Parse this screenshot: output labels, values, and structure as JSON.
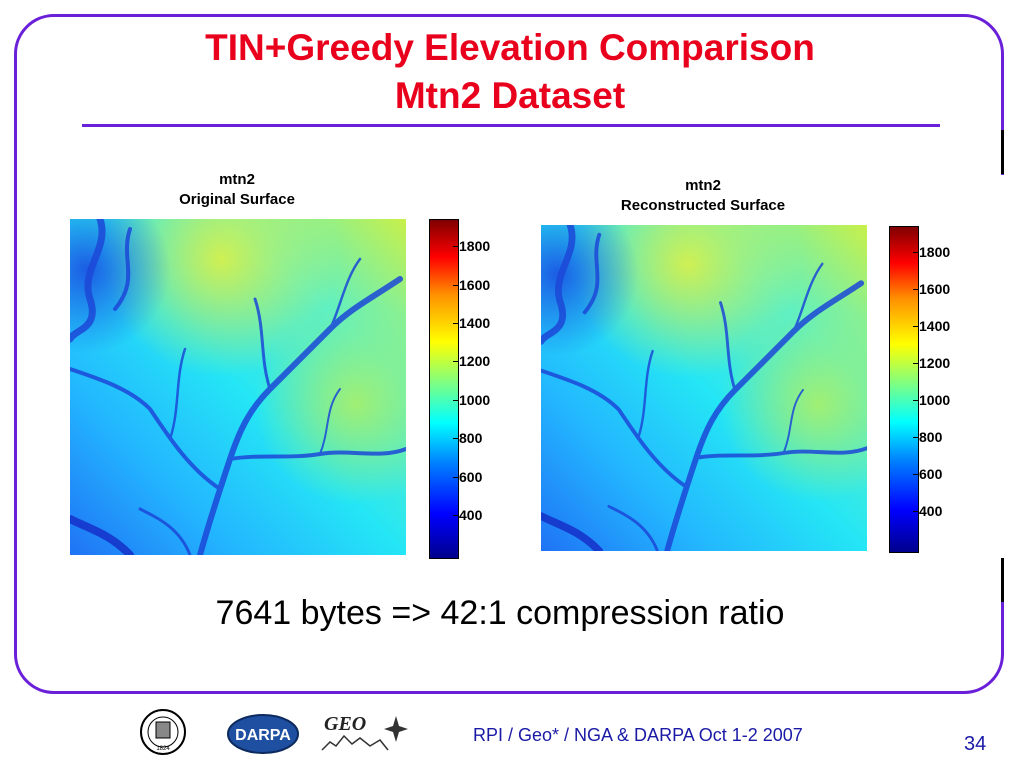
{
  "slide": {
    "title_line1": "TIN+Greedy Elevation Comparison",
    "title_line2": "Mtn2 Dataset",
    "caption": "7641 bytes => 42:1 compression ratio",
    "footer": "RPI / Geo* /  NGA & DARPA  Oct 1-2 2007",
    "page_number": "34"
  },
  "panels": [
    {
      "dataset": "mtn2",
      "subtitle": "Original Surface",
      "colorbar_ticks": [
        "1800",
        "1600",
        "1400",
        "1200",
        "1000",
        "800",
        "600",
        "400"
      ]
    },
    {
      "dataset": "mtn2",
      "subtitle": "Reconstructed Surface",
      "colorbar_ticks": [
        "1800",
        "1600",
        "1400",
        "1200",
        "1000",
        "800",
        "600",
        "400"
      ]
    }
  ],
  "logos": {
    "rpi_seal_text": "1824",
    "darpa_text": "DARPA",
    "geo_text": "GEO"
  },
  "colors": {
    "title": "#e8001c",
    "accent": "#6a1fd8",
    "footer": "#1a1aa6"
  }
}
